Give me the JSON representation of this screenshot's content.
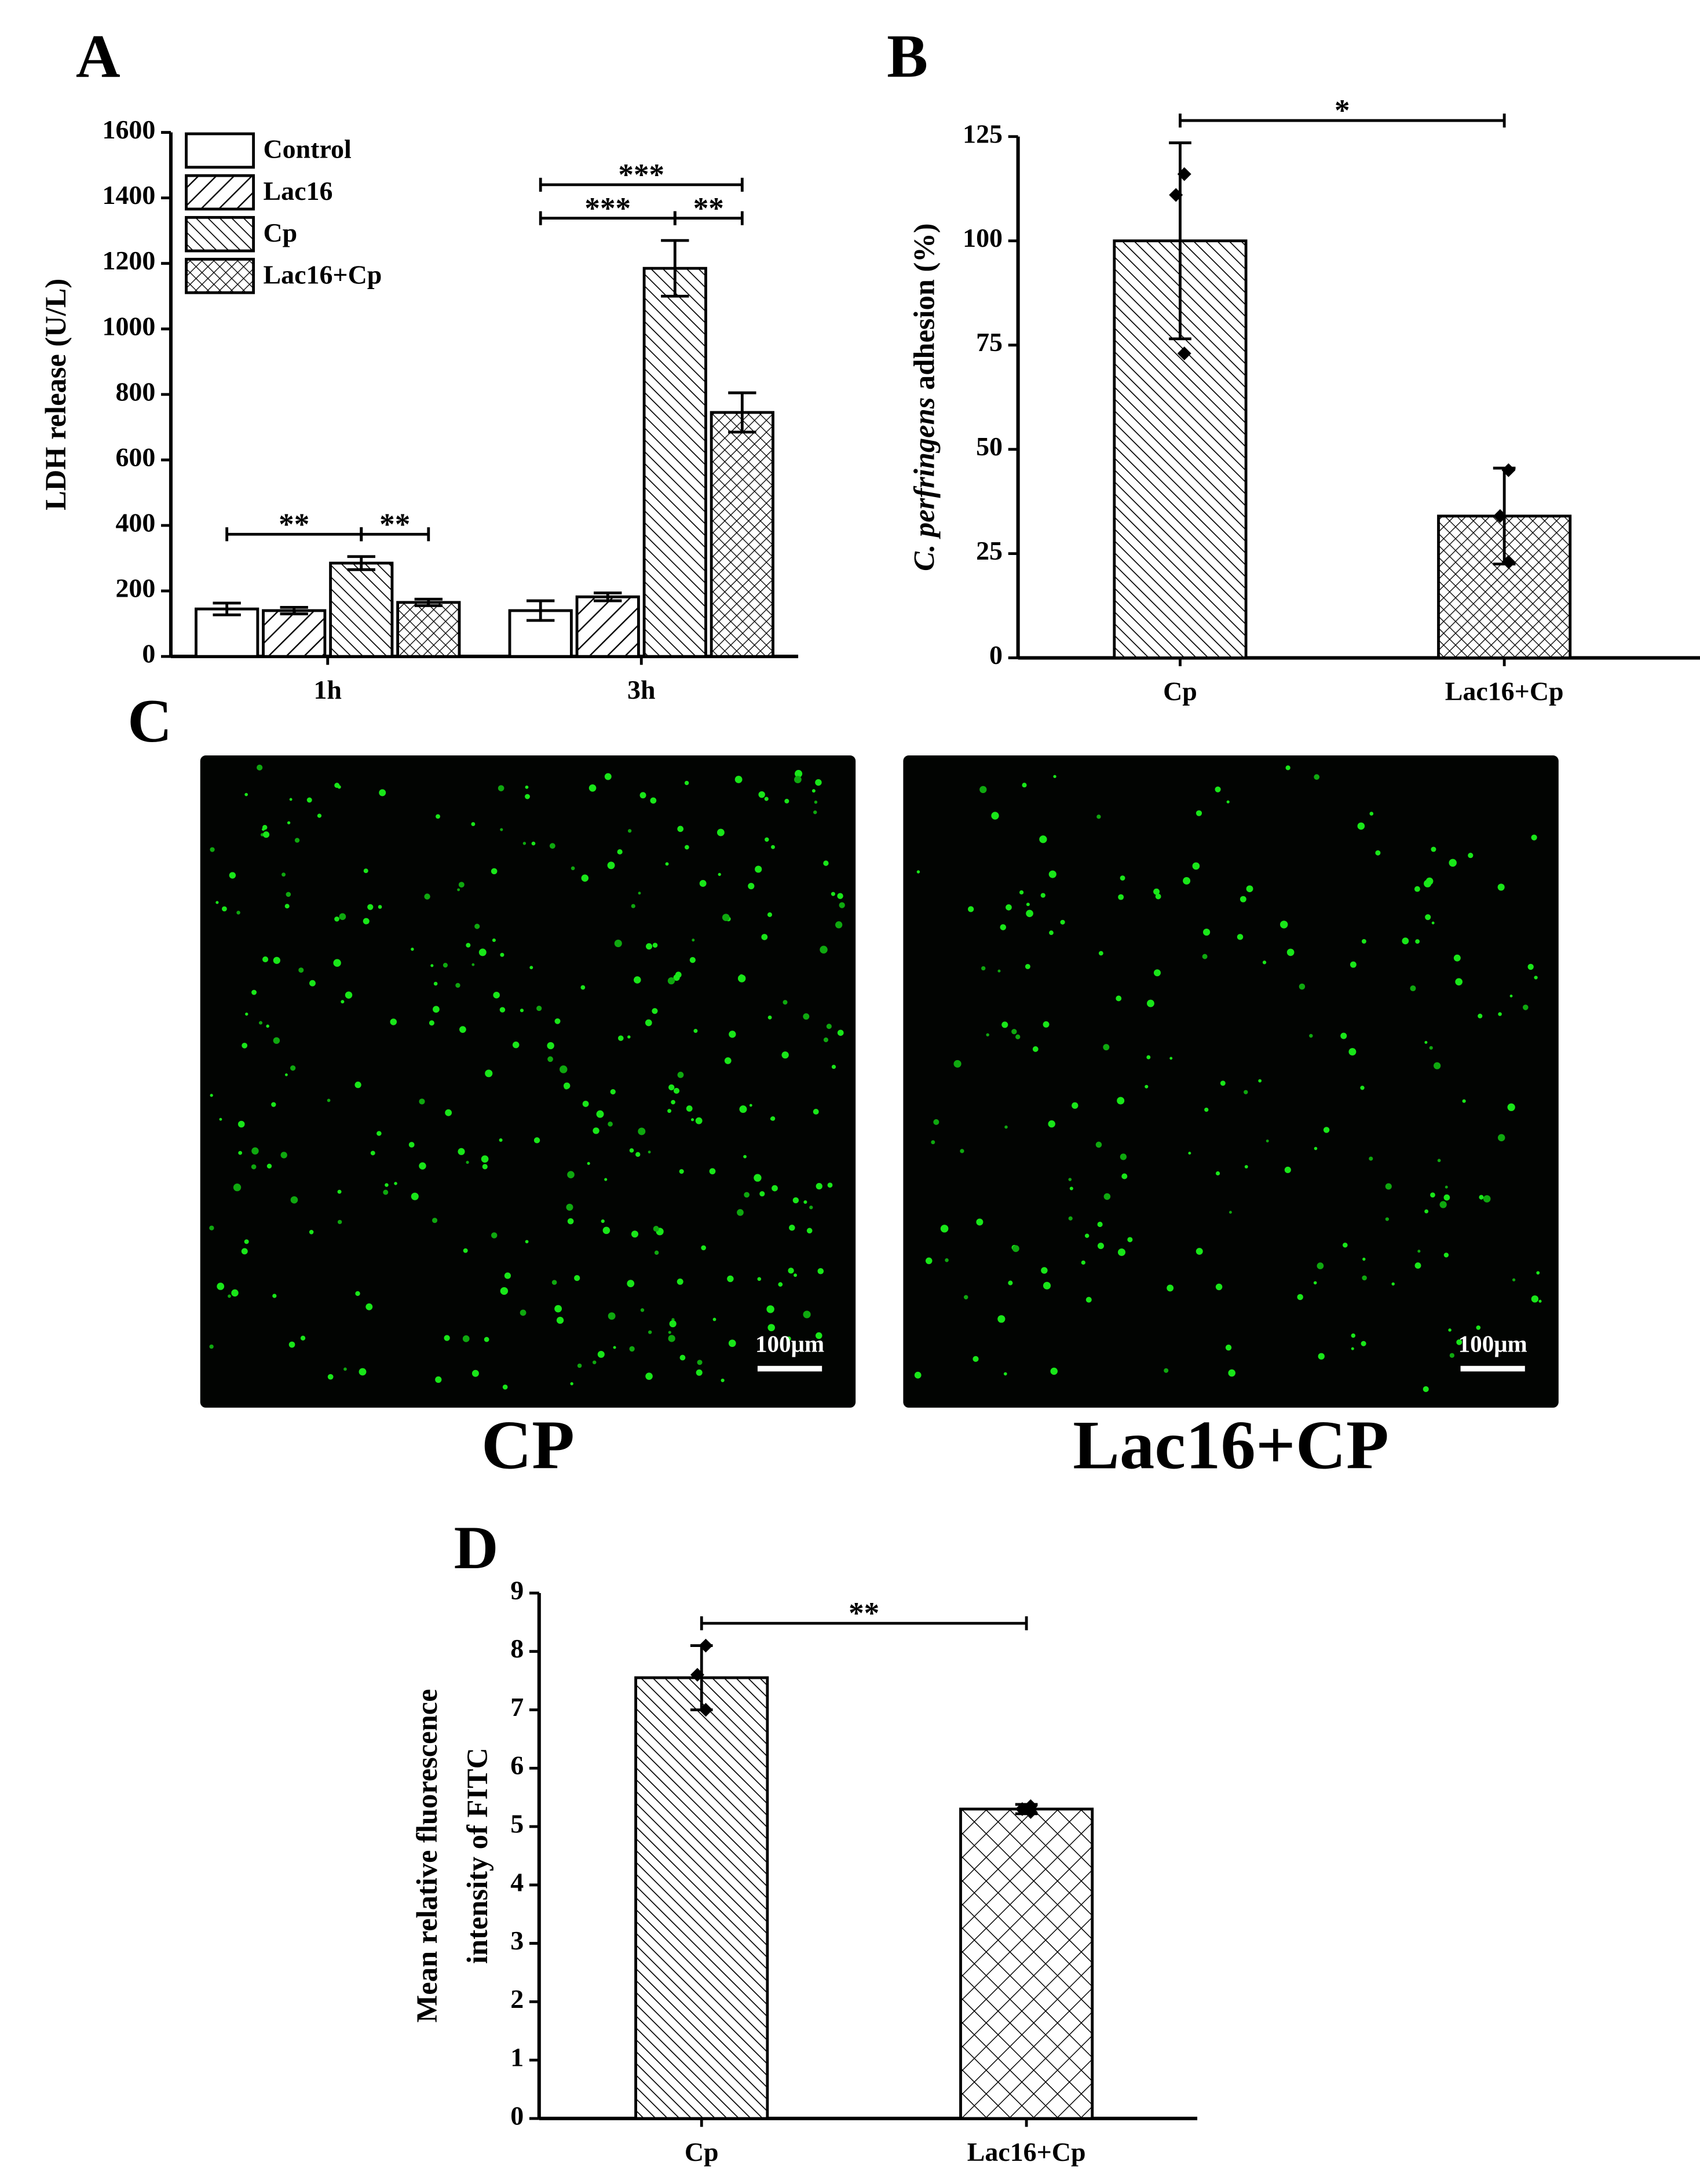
{
  "chart_data": [
    {
      "type": "bar",
      "label": "A",
      "ylabel": "LDH release (U/L)",
      "categories": [
        "1h",
        "3h"
      ],
      "series": [
        {
          "name": "Control",
          "pattern": "none",
          "values": [
            145,
            140
          ],
          "errors": [
            18,
            30
          ]
        },
        {
          "name": "Lac16",
          "pattern": "diagonal-wide",
          "values": [
            140,
            182
          ],
          "errors": [
            10,
            12
          ]
        },
        {
          "name": "Cp",
          "pattern": "diagonal",
          "values": [
            285,
            1185
          ],
          "errors": [
            20,
            85
          ]
        },
        {
          "name": "Lac16+Cp",
          "pattern": "crosshatch",
          "values": [
            165,
            745
          ],
          "errors": [
            10,
            60
          ]
        }
      ],
      "ylim": [
        0,
        1600
      ],
      "yticks": [
        0,
        200,
        400,
        600,
        800,
        1000,
        1200,
        1400,
        1600
      ],
      "legend": "top-left",
      "annotations": [
        {
          "text": "**",
          "category": 0,
          "from": 0,
          "to": 2
        },
        {
          "text": "**",
          "category": 0,
          "from": 2,
          "to": 3
        },
        {
          "text": "***",
          "category": 1,
          "from": 0,
          "to": 2
        },
        {
          "text": "**",
          "category": 1,
          "from": 2,
          "to": 3
        },
        {
          "text": "***",
          "category": 1,
          "from": 0,
          "to": 3
        }
      ]
    },
    {
      "type": "bar",
      "label": "B",
      "ylabel": [
        {
          "text": "C. perfringens",
          "italic": true
        },
        {
          "text": " adhesion (%)"
        }
      ],
      "categories": [
        "Cp",
        "Lac16+Cp"
      ],
      "values": [
        100,
        34
      ],
      "errors": [
        23.5,
        11.5
      ],
      "points": [
        [
          116,
          111,
          73
        ],
        [
          45,
          34,
          23
        ]
      ],
      "patterns": [
        "diagonal",
        "crosshatch"
      ],
      "ylim": [
        0,
        125
      ],
      "yticks": [
        0,
        25,
        50,
        75,
        100,
        125
      ],
      "annotations": [
        {
          "text": "*",
          "from": 0,
          "to": 1
        }
      ]
    },
    {
      "type": "bar",
      "label": "D",
      "ylabel": [
        "Mean relative fluorescence",
        "intensity of FITC"
      ],
      "categories": [
        "Cp",
        "Lac16+Cp"
      ],
      "values": [
        7.55,
        5.3
      ],
      "errors": [
        0.55,
        0.08
      ],
      "points": [
        [
          8.1,
          7.6,
          7.0
        ],
        [
          5.35,
          5.3,
          5.25
        ]
      ],
      "patterns": [
        "diagonal",
        "crosshatch-wide"
      ],
      "ylim": [
        0,
        9
      ],
      "yticks": [
        0,
        1,
        2,
        3,
        4,
        5,
        6,
        7,
        8,
        9
      ],
      "annotations": [
        {
          "text": "**",
          "from": 0,
          "to": 1
        }
      ]
    }
  ],
  "images": {
    "label": "C",
    "panels": [
      {
        "caption": "CP",
        "scale_bar": "100μm"
      },
      {
        "caption": "Lac16+CP",
        "scale_bar": "100μm"
      }
    ]
  }
}
